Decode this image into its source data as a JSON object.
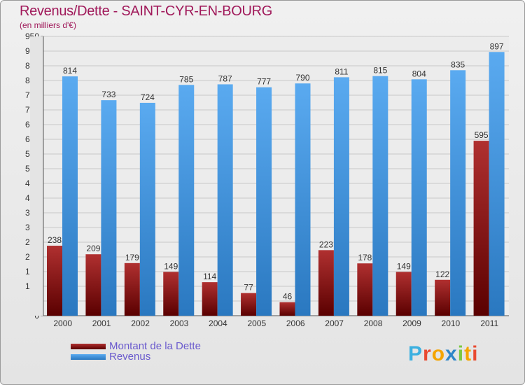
{
  "title": "Revenus/Dette - SAINT-CYR-EN-BOURG",
  "subtitle": "(en milliers d'€)",
  "logo_letters": [
    "P",
    "r",
    "o",
    "x",
    "i",
    "t",
    "i"
  ],
  "logo_colors": [
    "#3cb0e0",
    "#e94a30",
    "#f5a500",
    "#2e86c8",
    "#7ac943",
    "#f5a500",
    "#e94a30"
  ],
  "chart_data": {
    "type": "bar",
    "categories": [
      "2000",
      "2001",
      "2002",
      "2003",
      "2004",
      "2005",
      "2006",
      "2007",
      "2008",
      "2009",
      "2010",
      "2011"
    ],
    "series": [
      {
        "name": "Montant de la Dette",
        "values": [
          238,
          209,
          179,
          149,
          114,
          77,
          46,
          223,
          178,
          149,
          122,
          595
        ],
        "color_top": "#b03030",
        "color_bottom": "#5a0000"
      },
      {
        "name": "Revenus",
        "values": [
          814,
          733,
          724,
          785,
          787,
          777,
          790,
          811,
          815,
          804,
          835,
          897
        ],
        "color_top": "#5aaaf0",
        "color_bottom": "#2a78c0"
      }
    ],
    "ylim": [
      0,
      950
    ],
    "ytick_step": 50,
    "grid": true,
    "legend_position": "bottom-left"
  }
}
